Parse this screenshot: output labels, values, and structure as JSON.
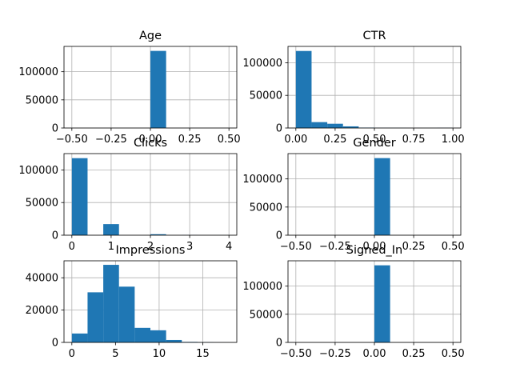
{
  "chart_data": [
    {
      "type": "bar",
      "title": "Age",
      "xlim": [
        -0.55,
        0.55
      ],
      "ylim": [
        0,
        145000
      ],
      "xticks": [
        -0.5,
        -0.25,
        0.0,
        0.25,
        0.5
      ],
      "xtick_labels": [
        "−0.50",
        "−0.25",
        "0.00",
        "0.25",
        "0.50"
      ],
      "yticks": [
        0,
        50000,
        100000
      ],
      "ytick_labels": [
        "0",
        "50000",
        "100000"
      ],
      "grid": true,
      "bins": [
        {
          "x0": 0.0,
          "x1": 0.1,
          "count": 137000
        }
      ]
    },
    {
      "type": "bar",
      "title": "CTR",
      "xlim": [
        -0.05,
        1.05
      ],
      "ylim": [
        0,
        125000
      ],
      "xticks": [
        0.0,
        0.25,
        0.5,
        0.75,
        1.0
      ],
      "xtick_labels": [
        "0.00",
        "0.25",
        "0.50",
        "0.75",
        "1.00"
      ],
      "yticks": [
        0,
        50000,
        100000
      ],
      "ytick_labels": [
        "0",
        "50000",
        "100000"
      ],
      "grid": true,
      "bins": [
        {
          "x0": 0.0,
          "x1": 0.1,
          "count": 118000
        },
        {
          "x0": 0.1,
          "x1": 0.2,
          "count": 9000
        },
        {
          "x0": 0.2,
          "x1": 0.3,
          "count": 6500
        },
        {
          "x0": 0.3,
          "x1": 0.4,
          "count": 2500
        },
        {
          "x0": 0.4,
          "x1": 0.5,
          "count": 600
        },
        {
          "x0": 0.5,
          "x1": 0.6,
          "count": 200
        },
        {
          "x0": 0.6,
          "x1": 0.7,
          "count": 100
        },
        {
          "x0": 0.7,
          "x1": 0.8,
          "count": 50
        },
        {
          "x0": 0.8,
          "x1": 0.9,
          "count": 30
        },
        {
          "x0": 0.9,
          "x1": 1.0,
          "count": 200
        }
      ]
    },
    {
      "type": "bar",
      "title": "Clicks",
      "xlim": [
        -0.2,
        4.2
      ],
      "ylim": [
        0,
        125000
      ],
      "xticks": [
        0,
        1,
        2,
        3,
        4
      ],
      "xtick_labels": [
        "0",
        "1",
        "2",
        "3",
        "4"
      ],
      "yticks": [
        0,
        50000,
        100000
      ],
      "ytick_labels": [
        "0",
        "50000",
        "100000"
      ],
      "grid": true,
      "bins": [
        {
          "x0": 0.0,
          "x1": 0.4,
          "count": 118000
        },
        {
          "x0": 0.8,
          "x1": 1.2,
          "count": 17000
        },
        {
          "x0": 2.0,
          "x1": 2.4,
          "count": 1500
        },
        {
          "x0": 2.8,
          "x1": 3.2,
          "count": 150
        },
        {
          "x0": 3.6,
          "x1": 4.0,
          "count": 30
        }
      ]
    },
    {
      "type": "bar",
      "title": "Gender",
      "xlim": [
        -0.55,
        0.55
      ],
      "ylim": [
        0,
        145000
      ],
      "xticks": [
        -0.5,
        -0.25,
        0.0,
        0.25,
        0.5
      ],
      "xtick_labels": [
        "−0.50",
        "−0.25",
        "0.00",
        "0.25",
        "0.50"
      ],
      "yticks": [
        0,
        50000,
        100000
      ],
      "ytick_labels": [
        "0",
        "50000",
        "100000"
      ],
      "grid": true,
      "bins": [
        {
          "x0": 0.0,
          "x1": 0.1,
          "count": 137000
        }
      ]
    },
    {
      "type": "bar",
      "title": "Impressions",
      "xlim": [
        -0.9,
        18.9
      ],
      "ylim": [
        0,
        50500
      ],
      "xticks": [
        0,
        5,
        10,
        15
      ],
      "xtick_labels": [
        "0",
        "5",
        "10",
        "15"
      ],
      "yticks": [
        0,
        20000,
        40000
      ],
      "ytick_labels": [
        "0",
        "20000",
        "40000"
      ],
      "grid": true,
      "bins": [
        {
          "x0": 0.0,
          "x1": 1.8,
          "count": 5500
        },
        {
          "x0": 1.8,
          "x1": 3.6,
          "count": 31000
        },
        {
          "x0": 3.6,
          "x1": 5.4,
          "count": 48000
        },
        {
          "x0": 5.4,
          "x1": 7.2,
          "count": 34500
        },
        {
          "x0": 7.2,
          "x1": 9.0,
          "count": 9000
        },
        {
          "x0": 9.0,
          "x1": 10.8,
          "count": 7500
        },
        {
          "x0": 10.8,
          "x1": 12.6,
          "count": 1500
        },
        {
          "x0": 12.6,
          "x1": 14.4,
          "count": 300
        },
        {
          "x0": 14.4,
          "x1": 16.2,
          "count": 100
        },
        {
          "x0": 16.2,
          "x1": 18.0,
          "count": 20
        }
      ]
    },
    {
      "type": "bar",
      "title": "Signed_In",
      "xlim": [
        -0.55,
        0.55
      ],
      "ylim": [
        0,
        145000
      ],
      "xticks": [
        -0.5,
        -0.25,
        0.0,
        0.25,
        0.5
      ],
      "xtick_labels": [
        "−0.50",
        "−0.25",
        "0.00",
        "0.25",
        "0.50"
      ],
      "yticks": [
        0,
        50000,
        100000
      ],
      "ytick_labels": [
        "0",
        "50000",
        "100000"
      ],
      "grid": true,
      "bins": [
        {
          "x0": 0.0,
          "x1": 0.1,
          "count": 137000
        }
      ]
    }
  ]
}
